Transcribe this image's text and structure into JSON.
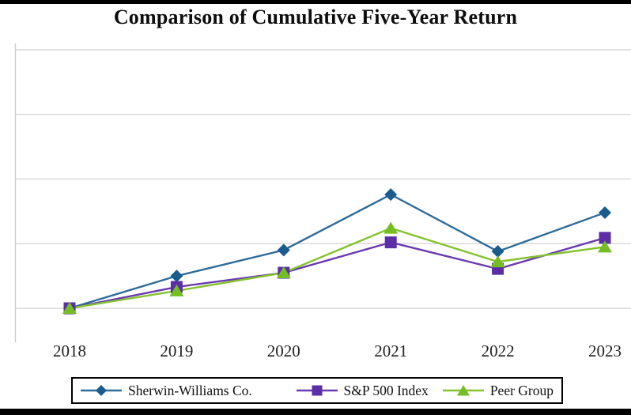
{
  "chart_data": {
    "type": "line",
    "title": "Comparison of Cumulative Five-Year Return",
    "categories": [
      "2018",
      "2019",
      "2020",
      "2021",
      "2022",
      "2023"
    ],
    "series": [
      {
        "name": "Sherwin-Williams Co.",
        "marker": "diamond",
        "line_color": "#2d6b99",
        "marker_color": "#1b5c8e",
        "values": [
          100,
          150,
          190,
          276,
          188,
          248
        ]
      },
      {
        "name": "S&P 500 Index",
        "marker": "square",
        "line_color": "#6a3ab0",
        "marker_color": "#5b2da6",
        "values": [
          100,
          133,
          155,
          202,
          161,
          209
        ]
      },
      {
        "name": "Peer Group",
        "marker": "triangle",
        "line_color": "#84c32c",
        "marker_color": "#74bd22",
        "values": [
          100,
          127,
          155,
          224,
          172,
          195
        ]
      }
    ],
    "xlabel": "",
    "ylabel": "",
    "ylim": [
      100,
      500
    ],
    "yticks": [
      100,
      200,
      300,
      400,
      500
    ],
    "y_axis_labels_cropped": true,
    "grid": true,
    "gridline_color": "#d9d9d9",
    "axis_line_color": "#cccccc",
    "legend_position": "bottom"
  }
}
